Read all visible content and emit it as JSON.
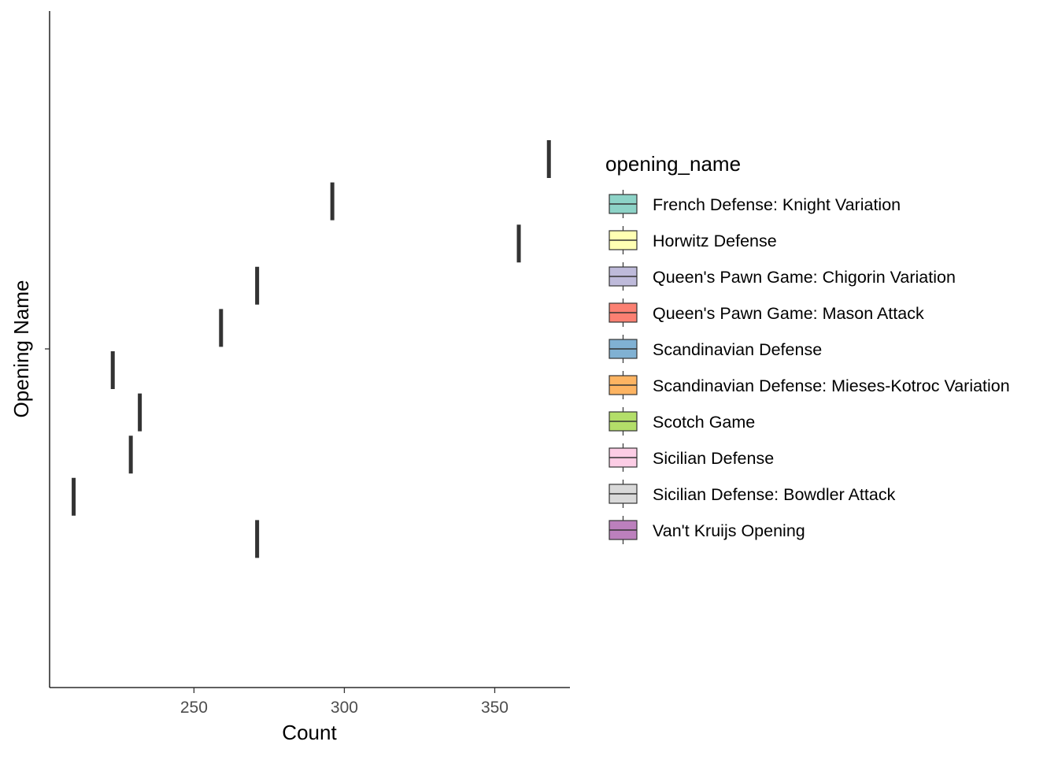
{
  "chart_data": {
    "type": "boxplot",
    "xlabel": "Count",
    "ylabel": "Opening Name",
    "xlim": [
      202,
      375
    ],
    "x_ticks": [
      250,
      300,
      350
    ],
    "x_tick_labels": [
      "250",
      "300",
      "350"
    ],
    "grid": false,
    "legend_position": "right",
    "legend_title": "opening_name",
    "series": [
      {
        "name": "French Defense: Knight Variation",
        "value": 368,
        "color": "#8DD3C7"
      },
      {
        "name": "Horwitz Defense",
        "value": 296,
        "color": "#FFFFB3"
      },
      {
        "name": "Queen's Pawn Game: Chigorin Variation",
        "value": 358,
        "color": "#BEBADA"
      },
      {
        "name": "Queen's Pawn Game: Mason Attack",
        "value": 271,
        "color": "#FB8072"
      },
      {
        "name": "Scandinavian Defense",
        "value": 259,
        "color": "#80B1D3"
      },
      {
        "name": "Scandinavian Defense: Mieses-Kotroc Variation",
        "value": 223,
        "color": "#FDB462"
      },
      {
        "name": "Scotch Game",
        "value": 232,
        "color": "#B3DE69"
      },
      {
        "name": "Sicilian Defense",
        "value": 229,
        "color": "#FCCDE5"
      },
      {
        "name": "Sicilian Defense: Bowdler Attack",
        "value": 210,
        "color": "#D9D9D9"
      },
      {
        "name": "Van't Kruijs Opening",
        "value": 271,
        "color": "#BC80BD"
      }
    ]
  }
}
